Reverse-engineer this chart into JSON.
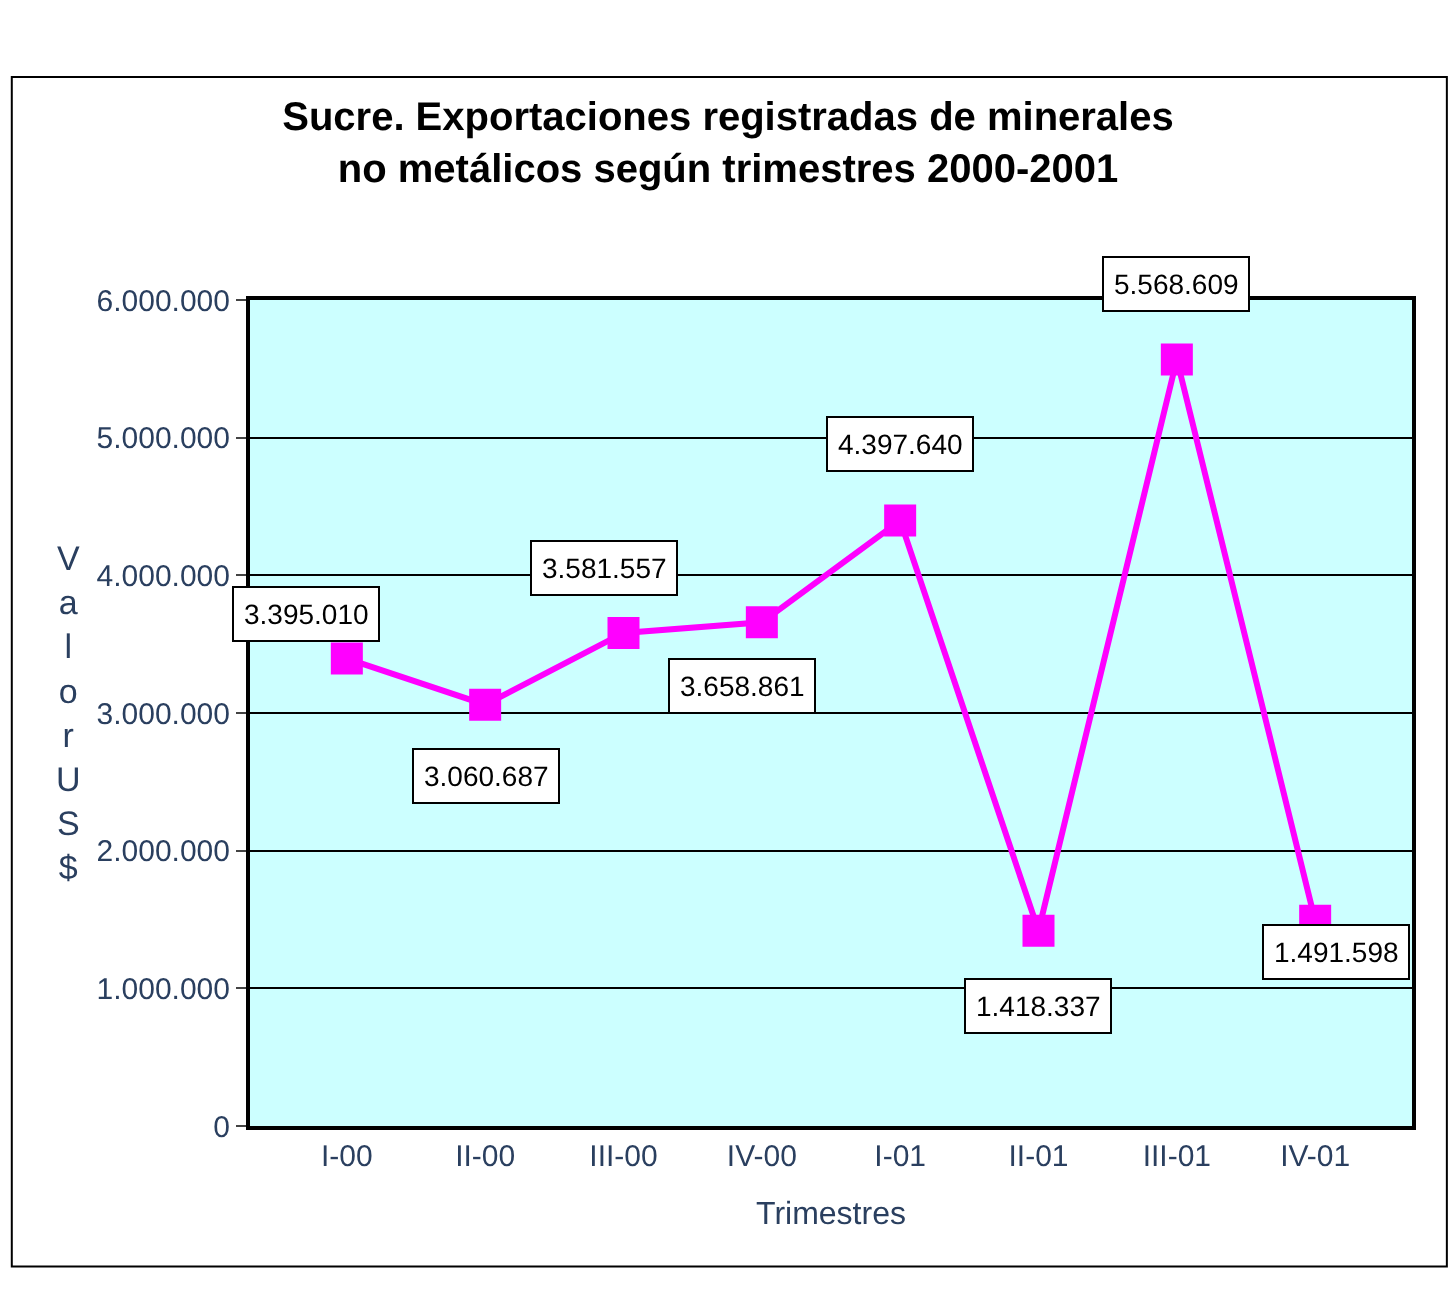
{
  "chart_data": {
    "type": "line",
    "title": "Sucre. Exportaciones registradas de minerales\nno metálicos según trimestres 2000-2001",
    "xlabel": "Trimestres",
    "ylabel": "Valor US$",
    "categories": [
      "I-00",
      "II-00",
      "III-00",
      "IV-00",
      "I-01",
      "II-01",
      "III-01",
      "IV-01"
    ],
    "series": [
      {
        "color": "#ff00ff",
        "values": [
          3395010,
          3060687,
          3581557,
          3658861,
          4397640,
          1418337,
          5568609,
          1491598
        ],
        "value_labels": [
          "3.395.010",
          "3.060.687",
          "3.581.557",
          "3.658.861",
          "4.397.640",
          "1.418.337",
          "5.568.609",
          "1.491.598"
        ]
      }
    ],
    "ylim": [
      0,
      6000000
    ],
    "yticks": [
      {
        "value": 0,
        "label": "0"
      },
      {
        "value": 1000000,
        "label": "1.000.000"
      },
      {
        "value": 2000000,
        "label": "2.000.000"
      },
      {
        "value": 3000000,
        "label": "3.000.000"
      },
      {
        "value": 4000000,
        "label": "4.000.000"
      },
      {
        "value": 5000000,
        "label": "5.000.000"
      },
      {
        "value": 6000000,
        "label": "6.000.000"
      }
    ],
    "grid": "y",
    "legend": false,
    "marker": "square",
    "line_style": "solid"
  }
}
